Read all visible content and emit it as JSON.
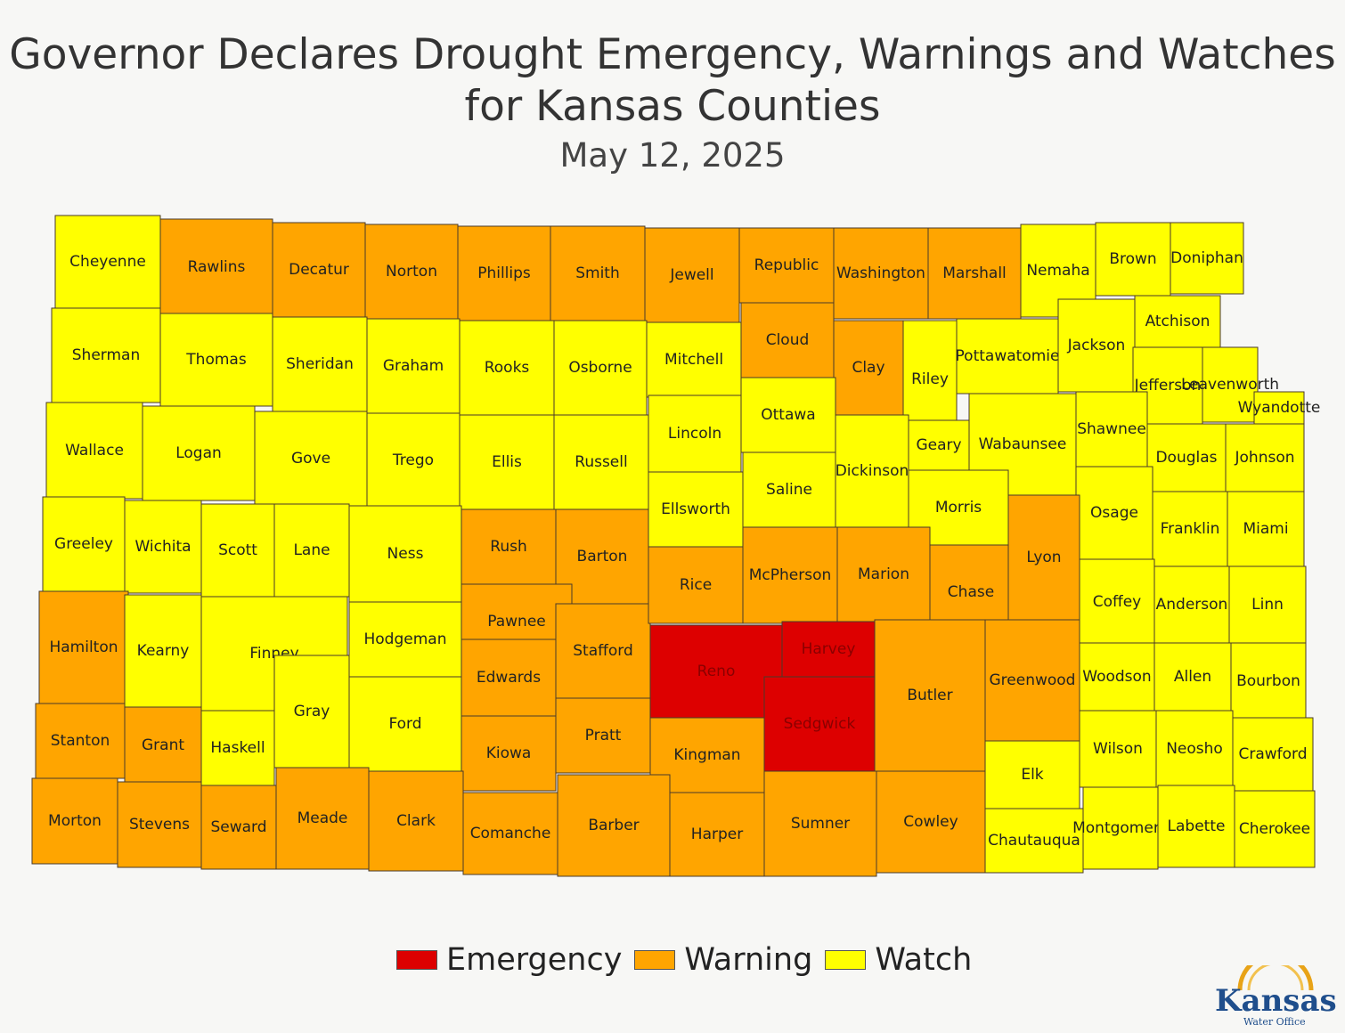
{
  "title_line1": "Governor Declares Drought Emergency, Warnings and Watches",
  "title_line2": "for Kansas Counties",
  "subtitle": "May 12, 2025",
  "colors": {
    "emergency": "#dd0000",
    "warning": "#ffa500",
    "watch": "#ffff00"
  },
  "legend": [
    {
      "label": "Emergency",
      "status": "emergency"
    },
    {
      "label": "Warning",
      "status": "warning"
    },
    {
      "label": "Watch",
      "status": "watch"
    }
  ],
  "logo": {
    "word": "Kansas",
    "sub": "Water Office",
    "type": "logo-icon"
  },
  "counties": [
    {
      "name": "Cheyenne",
      "status": "watch"
    },
    {
      "name": "Rawlins",
      "status": "warning"
    },
    {
      "name": "Decatur",
      "status": "warning"
    },
    {
      "name": "Norton",
      "status": "warning"
    },
    {
      "name": "Phillips",
      "status": "warning"
    },
    {
      "name": "Smith",
      "status": "warning"
    },
    {
      "name": "Jewell",
      "status": "warning"
    },
    {
      "name": "Republic",
      "status": "warning"
    },
    {
      "name": "Washington",
      "status": "warning"
    },
    {
      "name": "Marshall",
      "status": "warning"
    },
    {
      "name": "Nemaha",
      "status": "watch"
    },
    {
      "name": "Brown",
      "status": "watch"
    },
    {
      "name": "Doniphan",
      "status": "watch"
    },
    {
      "name": "Sherman",
      "status": "watch"
    },
    {
      "name": "Thomas",
      "status": "watch"
    },
    {
      "name": "Sheridan",
      "status": "watch"
    },
    {
      "name": "Graham",
      "status": "watch"
    },
    {
      "name": "Rooks",
      "status": "watch"
    },
    {
      "name": "Osborne",
      "status": "watch"
    },
    {
      "name": "Mitchell",
      "status": "watch"
    },
    {
      "name": "Cloud",
      "status": "warning"
    },
    {
      "name": "Clay",
      "status": "warning"
    },
    {
      "name": "Riley",
      "status": "watch"
    },
    {
      "name": "Pottawatomie",
      "status": "watch"
    },
    {
      "name": "Jackson",
      "status": "watch"
    },
    {
      "name": "Atchison",
      "status": "watch"
    },
    {
      "name": "Jefferson",
      "status": "watch"
    },
    {
      "name": "Leavenworth",
      "status": "watch"
    },
    {
      "name": "Wyandotte",
      "status": "watch"
    },
    {
      "name": "Wallace",
      "status": "watch"
    },
    {
      "name": "Logan",
      "status": "watch"
    },
    {
      "name": "Gove",
      "status": "watch"
    },
    {
      "name": "Trego",
      "status": "watch"
    },
    {
      "name": "Ellis",
      "status": "watch"
    },
    {
      "name": "Russell",
      "status": "watch"
    },
    {
      "name": "Lincoln",
      "status": "watch"
    },
    {
      "name": "Ottawa",
      "status": "watch"
    },
    {
      "name": "Dickinson",
      "status": "watch"
    },
    {
      "name": "Geary",
      "status": "watch"
    },
    {
      "name": "Wabaunsee",
      "status": "watch"
    },
    {
      "name": "Shawnee",
      "status": "watch"
    },
    {
      "name": "Douglas",
      "status": "watch"
    },
    {
      "name": "Johnson",
      "status": "watch"
    },
    {
      "name": "Greeley",
      "status": "watch"
    },
    {
      "name": "Wichita",
      "status": "watch"
    },
    {
      "name": "Scott",
      "status": "watch"
    },
    {
      "name": "Lane",
      "status": "watch"
    },
    {
      "name": "Ness",
      "status": "watch"
    },
    {
      "name": "Rush",
      "status": "warning"
    },
    {
      "name": "Barton",
      "status": "warning"
    },
    {
      "name": "Ellsworth",
      "status": "watch"
    },
    {
      "name": "Saline",
      "status": "watch"
    },
    {
      "name": "Morris",
      "status": "watch"
    },
    {
      "name": "Osage",
      "status": "watch"
    },
    {
      "name": "Franklin",
      "status": "watch"
    },
    {
      "name": "Miami",
      "status": "watch"
    },
    {
      "name": "Hamilton",
      "status": "warning"
    },
    {
      "name": "Kearny",
      "status": "watch"
    },
    {
      "name": "Finney",
      "status": "watch"
    },
    {
      "name": "Hodgeman",
      "status": "watch"
    },
    {
      "name": "Pawnee",
      "status": "warning"
    },
    {
      "name": "Stafford",
      "status": "warning"
    },
    {
      "name": "Rice",
      "status": "warning"
    },
    {
      "name": "McPherson",
      "status": "warning"
    },
    {
      "name": "Marion",
      "status": "warning"
    },
    {
      "name": "Chase",
      "status": "warning"
    },
    {
      "name": "Lyon",
      "status": "warning"
    },
    {
      "name": "Coffey",
      "status": "watch"
    },
    {
      "name": "Anderson",
      "status": "watch"
    },
    {
      "name": "Linn",
      "status": "watch"
    },
    {
      "name": "Reno",
      "status": "emergency"
    },
    {
      "name": "Harvey",
      "status": "emergency"
    },
    {
      "name": "Sedgwick",
      "status": "emergency"
    },
    {
      "name": "Gray",
      "status": "watch"
    },
    {
      "name": "Ford",
      "status": "watch"
    },
    {
      "name": "Edwards",
      "status": "warning"
    },
    {
      "name": "Butler",
      "status": "warning"
    },
    {
      "name": "Greenwood",
      "status": "warning"
    },
    {
      "name": "Woodson",
      "status": "watch"
    },
    {
      "name": "Allen",
      "status": "watch"
    },
    {
      "name": "Bourbon",
      "status": "watch"
    },
    {
      "name": "Stanton",
      "status": "warning"
    },
    {
      "name": "Grant",
      "status": "warning"
    },
    {
      "name": "Haskell",
      "status": "watch"
    },
    {
      "name": "Kiowa",
      "status": "warning"
    },
    {
      "name": "Pratt",
      "status": "warning"
    },
    {
      "name": "Kingman",
      "status": "warning"
    },
    {
      "name": "Elk",
      "status": "watch"
    },
    {
      "name": "Wilson",
      "status": "watch"
    },
    {
      "name": "Neosho",
      "status": "watch"
    },
    {
      "name": "Crawford",
      "status": "watch"
    },
    {
      "name": "Morton",
      "status": "warning"
    },
    {
      "name": "Stevens",
      "status": "warning"
    },
    {
      "name": "Seward",
      "status": "warning"
    },
    {
      "name": "Meade",
      "status": "warning"
    },
    {
      "name": "Clark",
      "status": "warning"
    },
    {
      "name": "Comanche",
      "status": "warning"
    },
    {
      "name": "Barber",
      "status": "warning"
    },
    {
      "name": "Harper",
      "status": "warning"
    },
    {
      "name": "Sumner",
      "status": "warning"
    },
    {
      "name": "Cowley",
      "status": "warning"
    },
    {
      "name": "Chautauqua",
      "status": "watch"
    },
    {
      "name": "Montgomery",
      "status": "watch"
    },
    {
      "name": "Labette",
      "status": "watch"
    },
    {
      "name": "Cherokee",
      "status": "watch"
    }
  ]
}
